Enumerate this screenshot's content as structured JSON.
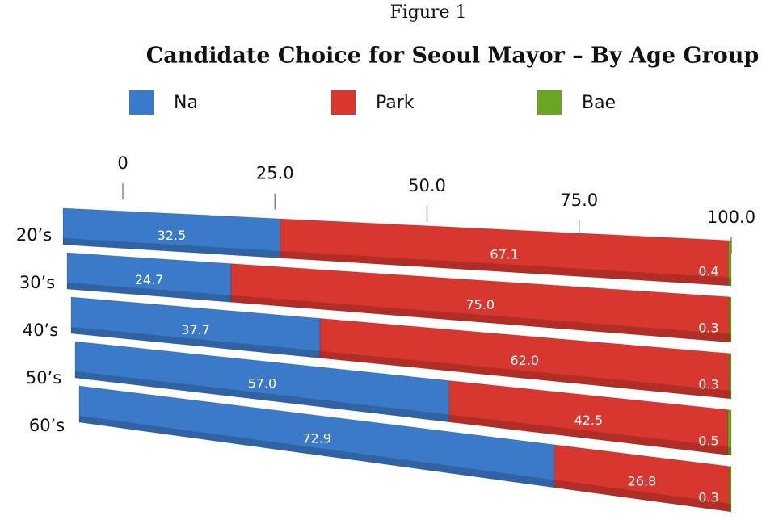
{
  "chart_data": {
    "type": "stacked_bar_3d",
    "figure_label": "Figure 1",
    "title": "Candidate Choice for Seoul Mayor – By Age Group",
    "categories": [
      "20’s",
      "30’s",
      "40’s",
      "50’s",
      "60’s"
    ],
    "series": [
      {
        "name": "Na",
        "color": "#3b79c9",
        "values": [
          32.5,
          24.7,
          37.7,
          57.0,
          72.9
        ],
        "value_labels": [
          "32.5",
          "24.7",
          "37.7",
          "57.0",
          "72.9"
        ]
      },
      {
        "name": "Park",
        "color": "#d8372f",
        "values": [
          67.1,
          75.0,
          62.0,
          42.5,
          26.8
        ],
        "value_labels": [
          "67.1",
          "75.0",
          "62.0",
          "42.5",
          "26.8"
        ]
      },
      {
        "name": "Bae",
        "color": "#6aa61f",
        "values": [
          0.4,
          0.3,
          0.3,
          0.5,
          0.3
        ]
      }
    ],
    "xlim": [
      0,
      100
    ],
    "xticks": [
      0,
      {
        "value": 25,
        "label": "25.0"
      },
      {
        "value": 50,
        "label": "50.0"
      },
      {
        "value": 75,
        "label": "75.0"
      },
      {
        "value": 100,
        "label": "100.0"
      }
    ],
    "legend": "top"
  }
}
